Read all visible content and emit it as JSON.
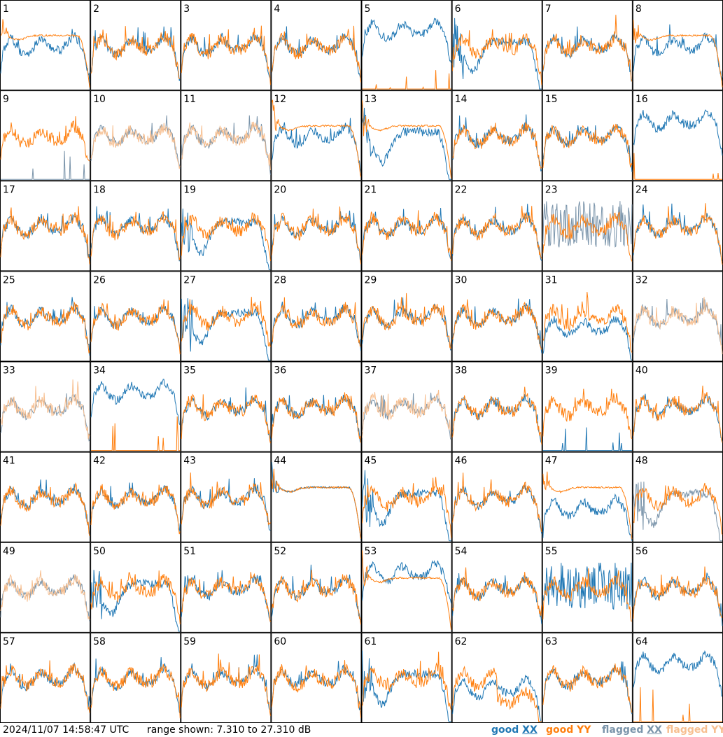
{
  "footer": {
    "timestamp": "2024/11/07 14:58:47 UTC",
    "range_text": "range shown: 7.310 to 27.310 dB"
  },
  "legend": [
    {
      "status": "good",
      "pol": "XX",
      "color": "#1f77b4"
    },
    {
      "status": "good",
      "pol": "YY",
      "color": "#ff7f0e"
    },
    {
      "status": "flagged",
      "pol": "XX",
      "color": "#7a94aa"
    },
    {
      "status": "flagged",
      "pol": "YY",
      "color": "#f7bf90"
    }
  ],
  "chart_data": {
    "type": "line",
    "layout": "8x8 small multiples of spectra per tile",
    "y_range_db": [
      7.31,
      27.31
    ],
    "tiles": [
      1,
      2,
      3,
      4,
      5,
      6,
      7,
      8,
      9,
      10,
      11,
      12,
      13,
      14,
      15,
      16,
      17,
      18,
      19,
      20,
      21,
      22,
      23,
      24,
      25,
      26,
      27,
      28,
      29,
      30,
      31,
      32,
      33,
      34,
      35,
      36,
      37,
      38,
      39,
      40,
      41,
      42,
      43,
      44,
      45,
      46,
      47,
      48,
      49,
      50,
      51,
      52,
      53,
      54,
      55,
      56,
      57,
      58,
      59,
      60,
      61,
      62,
      63,
      64
    ],
    "series": [
      {
        "name": "good XX",
        "color": "#1f77b4"
      },
      {
        "name": "good YY",
        "color": "#ff7f0e"
      },
      {
        "name": "flagged XX",
        "color": "#7a94aa"
      },
      {
        "name": "flagged YY",
        "color": "#f7bf90"
      }
    ],
    "flagged_tiles": {
      "XX": [
        9,
        10,
        11,
        23,
        32,
        33,
        37,
        48,
        49
      ],
      "YY": [
        10,
        11,
        32,
        33,
        37,
        49
      ]
    },
    "odd_xx": {
      "5": "high",
      "6": "dip",
      "13": "dip",
      "16": "high",
      "19": "dip",
      "27": "dip",
      "31": "low",
      "34": "high",
      "44": "flat",
      "45": "dip",
      "47": "low",
      "48": "dip",
      "50": "dip",
      "53": "high",
      "61": "dip",
      "62": "low",
      "64": "high",
      "9": "dead",
      "23": "noisy",
      "39": "dead",
      "55": "noisy"
    },
    "odd_yy": {
      "1": "flat",
      "8": "flat",
      "12": "flat",
      "13": "flat",
      "44": "flat",
      "47": "flat",
      "53": "flat",
      "62": "step",
      "5": "dead",
      "16": "dead",
      "34": "dead",
      "64": "dead"
    }
  }
}
